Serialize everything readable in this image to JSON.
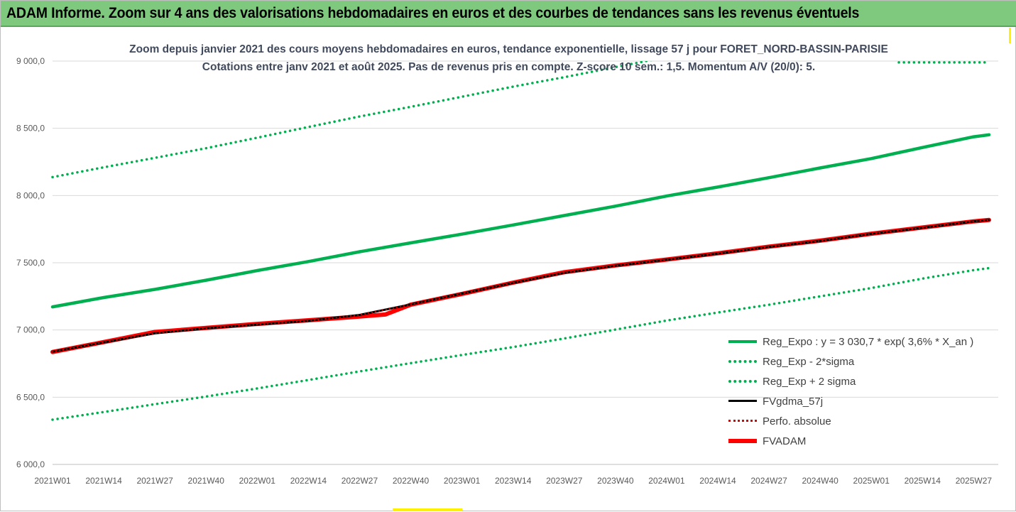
{
  "banner": {
    "title": "ADAM Informe. Zoom sur 4 ans des valorisations hebdomadaires en euros et des courbes de tendances sans les revenus éventuels"
  },
  "subtitle": {
    "line1": "Zoom depuis janvier 2021 des cours moyens hebdomadaires en euros, tendance exponentielle, lissage 57 j pour FORET_NORD-BASSIN-PARISIE",
    "line2": "Cotations entre janv 2021 et août 2025.  Pas de revenus pris en compte. Z-score 10 sem.: 1,5. Momentum A/V (20/0): 5."
  },
  "colors": {
    "green": "#00b050",
    "red": "#ff0000",
    "black": "#000000",
    "red_dotted": "#e00000",
    "banner": "#7ec97e"
  },
  "chart_data": {
    "type": "line",
    "ylim": [
      6000,
      9000
    ],
    "yticks": [
      9000,
      8500,
      8000,
      7500,
      7000,
      6500,
      6000
    ],
    "ytick_labels": [
      "9 000,0",
      "8 500,0",
      "8 000,0",
      "7 500,0",
      "7 000,0",
      "6 500,0",
      "6 000,0"
    ],
    "xtick_labels": [
      "2021W01",
      "2021W14",
      "2021W27",
      "2021W40",
      "2022W01",
      "2022W14",
      "2022W27",
      "2022W40",
      "2023W01",
      "2023W14",
      "2023W27",
      "2023W40",
      "2024W01",
      "2024W14",
      "2024W27",
      "2024W40",
      "2025W01",
      "2025W14",
      "2025W27"
    ],
    "x_last_index": 18.3,
    "grid": true,
    "legend_position": "bottom-right",
    "series": [
      {
        "name": "Reg_Expo : y = 3 030,7 * exp( 3,6% *  X_an )",
        "style": "green-solid",
        "points": [
          [
            0,
            7172
          ],
          [
            1,
            7241
          ],
          [
            2,
            7302
          ],
          [
            3,
            7370
          ],
          [
            4,
            7442
          ],
          [
            5,
            7509
          ],
          [
            6,
            7582
          ],
          [
            7,
            7648
          ],
          [
            8,
            7713
          ],
          [
            9,
            7781
          ],
          [
            10,
            7851
          ],
          [
            11,
            7921
          ],
          [
            12,
            7996
          ],
          [
            13,
            8063
          ],
          [
            14,
            8133
          ],
          [
            15,
            8205
          ],
          [
            16,
            8275
          ],
          [
            17,
            8357
          ],
          [
            18,
            8437
          ],
          [
            18.3,
            8452
          ]
        ]
      },
      {
        "name": "Reg_Exp - 2*sigma",
        "style": "green-dotted",
        "points": [
          [
            0,
            6333
          ],
          [
            1,
            6390
          ],
          [
            2,
            6448
          ],
          [
            3,
            6505
          ],
          [
            4,
            6565
          ],
          [
            5,
            6628
          ],
          [
            6,
            6692
          ],
          [
            7,
            6753
          ],
          [
            8,
            6814
          ],
          [
            9,
            6873
          ],
          [
            10,
            6937
          ],
          [
            11,
            7003
          ],
          [
            12,
            7070
          ],
          [
            13,
            7130
          ],
          [
            14,
            7188
          ],
          [
            15,
            7250
          ],
          [
            16,
            7312
          ],
          [
            17,
            7382
          ],
          [
            18,
            7445
          ],
          [
            18.3,
            7460
          ]
        ]
      },
      {
        "name": "Reg_Exp + 2 sigma",
        "style": "green-dotted",
        "points": [
          [
            0,
            8137
          ],
          [
            1,
            8210
          ],
          [
            2,
            8280
          ],
          [
            3,
            8352
          ],
          [
            4,
            8430
          ],
          [
            5,
            8510
          ],
          [
            6,
            8588
          ],
          [
            7,
            8660
          ],
          [
            8,
            8735
          ],
          [
            9,
            8810
          ],
          [
            9.5,
            8845
          ],
          [
            10,
            8880
          ],
          [
            11,
            8955
          ],
          [
            12,
            9030
          ]
        ]
      },
      {
        "name": "FVgdma_57j",
        "style": "black-solid",
        "points": [
          [
            0,
            6838
          ],
          [
            1,
            6908
          ],
          [
            2,
            6975
          ],
          [
            3,
            7013
          ],
          [
            4,
            7040
          ],
          [
            5,
            7068
          ],
          [
            6,
            7112
          ],
          [
            7,
            7190
          ],
          [
            8,
            7270
          ],
          [
            9,
            7350
          ],
          [
            10,
            7425
          ],
          [
            11,
            7478
          ],
          [
            12,
            7522
          ],
          [
            13,
            7568
          ],
          [
            14,
            7618
          ],
          [
            15,
            7662
          ],
          [
            16,
            7715
          ],
          [
            17,
            7760
          ],
          [
            18,
            7808
          ],
          [
            18.3,
            7818
          ]
        ]
      },
      {
        "name": "Perfo. absolue",
        "style": "red-dotted",
        "points": [
          [
            0,
            6838
          ],
          [
            1,
            6908
          ],
          [
            2,
            6975
          ],
          [
            3,
            7013
          ],
          [
            4,
            7040
          ],
          [
            5,
            7068
          ],
          [
            6,
            7112
          ],
          [
            7,
            7190
          ],
          [
            8,
            7270
          ],
          [
            9,
            7350
          ],
          [
            10,
            7425
          ],
          [
            11,
            7478
          ],
          [
            12,
            7522
          ],
          [
            13,
            7568
          ],
          [
            14,
            7618
          ],
          [
            15,
            7662
          ],
          [
            16,
            7715
          ],
          [
            17,
            7760
          ],
          [
            18,
            7808
          ],
          [
            18.3,
            7818
          ]
        ]
      },
      {
        "name": "FVADAM",
        "style": "red-thick",
        "points": [
          [
            0,
            6836
          ],
          [
            1,
            6910
          ],
          [
            2,
            6985
          ],
          [
            3,
            7015
          ],
          [
            4,
            7045
          ],
          [
            5,
            7072
          ],
          [
            6,
            7100
          ],
          [
            6.5,
            7115
          ],
          [
            7,
            7188
          ],
          [
            8,
            7268
          ],
          [
            9,
            7352
          ],
          [
            10,
            7430
          ],
          [
            11,
            7480
          ],
          [
            12,
            7524
          ],
          [
            13,
            7570
          ],
          [
            14,
            7620
          ],
          [
            15,
            7664
          ],
          [
            16,
            7716
          ],
          [
            17,
            7762
          ],
          [
            18,
            7808
          ],
          [
            18.3,
            7818
          ]
        ]
      }
    ]
  }
}
